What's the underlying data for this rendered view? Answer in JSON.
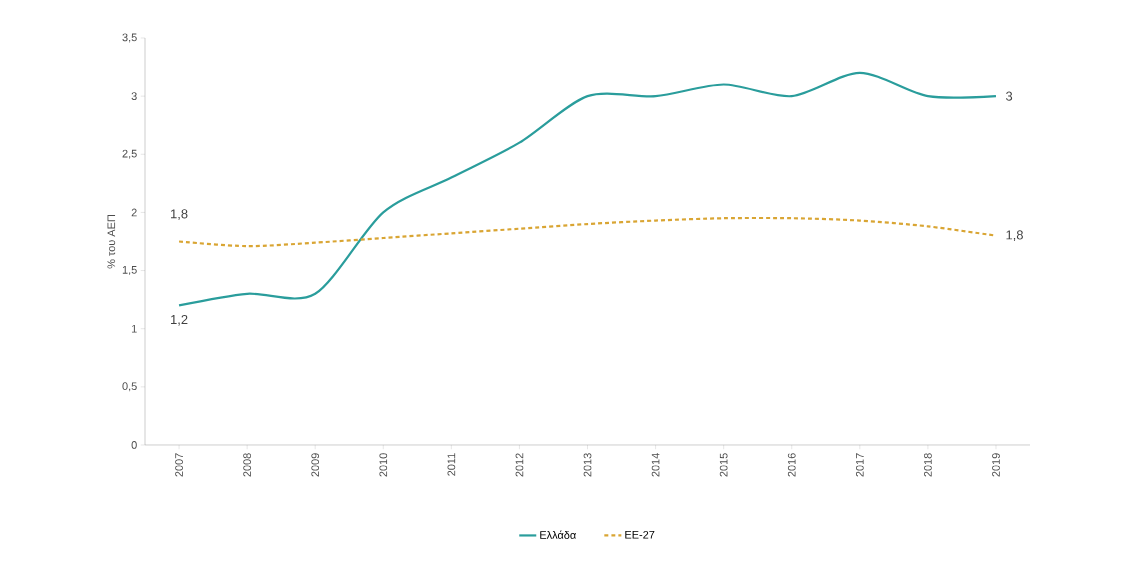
{
  "chart_data": {
    "type": "line",
    "ylabel": "% του ΑΕΠ",
    "categories": [
      "2007",
      "2008",
      "2009",
      "2010",
      "2011",
      "2012",
      "2013",
      "2014",
      "2015",
      "2016",
      "2017",
      "2018",
      "2019"
    ],
    "series": [
      {
        "name": "Ελλάδα",
        "color": "#2a9d9c",
        "line_style": "solid",
        "values": [
          1.2,
          1.3,
          1.3,
          2.0,
          2.3,
          2.6,
          3.0,
          3.0,
          3.1,
          3.0,
          3.2,
          3.0,
          3.0
        ],
        "value_labels": [
          "1,2",
          null,
          null,
          null,
          null,
          null,
          null,
          null,
          null,
          null,
          null,
          null,
          "3"
        ]
      },
      {
        "name": "ΕΕ-27",
        "color": "#d9a533",
        "line_style": "dotted",
        "values": [
          1.75,
          1.71,
          1.74,
          1.78,
          1.82,
          1.86,
          1.9,
          1.93,
          1.95,
          1.95,
          1.93,
          1.88,
          1.8
        ],
        "value_labels": [
          "1,8",
          null,
          null,
          null,
          null,
          null,
          null,
          null,
          null,
          null,
          null,
          null,
          "1,8"
        ]
      }
    ],
    "ylim": [
      0,
      3.5
    ],
    "yticks": [
      0,
      {
        "value": 0.5,
        "label": "0,5"
      },
      1,
      {
        "value": 1.5,
        "label": "1,5"
      },
      2,
      {
        "value": 2.5,
        "label": "2,5"
      },
      3,
      {
        "value": 3.5,
        "label": "3,5"
      }
    ],
    "grid": false,
    "legend": "bottom",
    "marker": "none"
  }
}
